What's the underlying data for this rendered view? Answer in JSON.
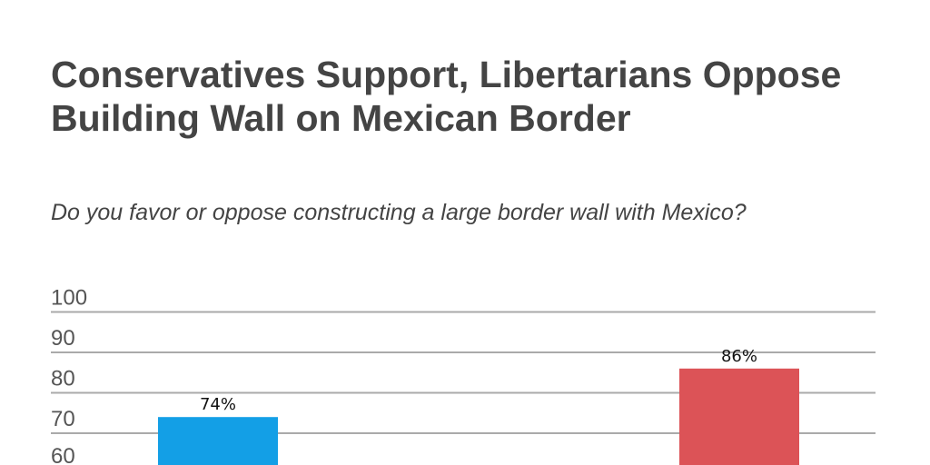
{
  "chart_data": {
    "type": "bar",
    "title": "Conservatives Support, Libertarians Oppose Building Wall on Mexican Border",
    "subtitle": "Do you favor or oppose constructing a large border wall with Mexico?",
    "xlabel": "",
    "ylabel": "",
    "ylim": [
      0,
      100
    ],
    "yticks": [
      "60",
      "70",
      "80",
      "90",
      "100"
    ],
    "grid": true,
    "values": [
      74,
      86
    ],
    "data_labels": [
      "74%",
      "86%"
    ],
    "colors": [
      "#139fe6",
      "#dc5357"
    ]
  }
}
